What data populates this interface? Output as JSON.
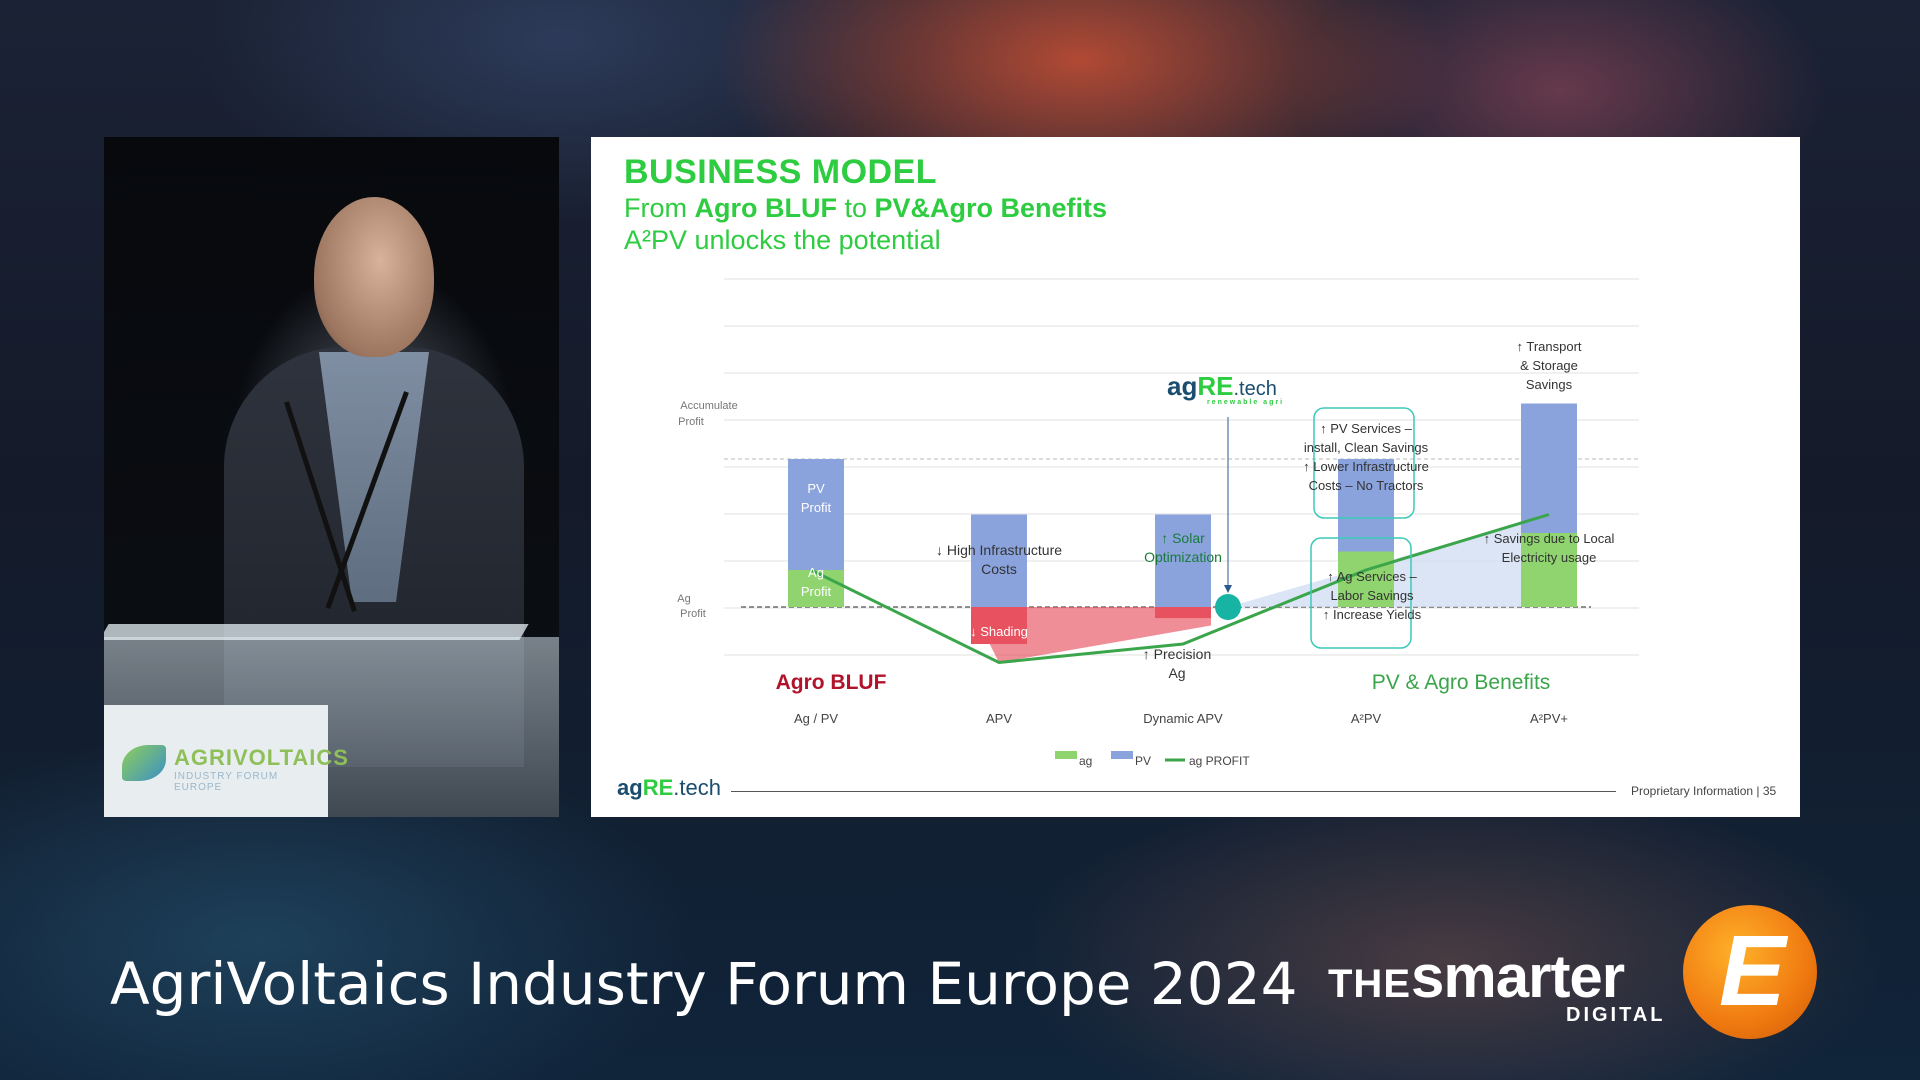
{
  "slide": {
    "title": "BUSINESS MODEL",
    "subtitle_prefix": "From ",
    "subtitle_bold1": "Agro BLUF",
    "subtitle_mid": " to ",
    "subtitle_bold2": "PV&Agro Benefits",
    "subtitle2": "A²PV unlocks the potential",
    "center_logo": {
      "ag": "ag",
      "re": "RE",
      "tech": ".tech",
      "tagline": "renewable agri"
    },
    "footer_logo": {
      "ag": "ag",
      "re": "RE",
      "tech": ".tech"
    },
    "footer_text": "Proprietary Information  |  35"
  },
  "chart_data": {
    "type": "bar",
    "categories": [
      "Ag / PV",
      "APV",
      "Dynamic APV",
      "A²PV",
      "A²PV+"
    ],
    "y_labels": [
      "Accumulate Profit",
      "Ag Profit"
    ],
    "series": [
      {
        "name": "ag",
        "color": "#8fd46e",
        "values": [
          1,
          -1,
          -0.3,
          1.5,
          2
        ]
      },
      {
        "name": "PV",
        "color": "#8aa3dd",
        "values": [
          3,
          2.5,
          2.5,
          2.5,
          3.5
        ]
      },
      {
        "name": "ag PROFIT",
        "color": "#3aa54a",
        "values": [
          1,
          -1.5,
          -1,
          1,
          2.5
        ]
      }
    ],
    "legend": [
      "ag",
      "PV",
      "ag PROFIT"
    ],
    "legend_position": "bottom",
    "section_labels": {
      "left": "Agro BLUF",
      "right": "PV & Agro Benefits"
    },
    "bar_labels": [
      {
        "key": "pv_profit",
        "text": "PV Profit"
      },
      {
        "key": "ag_profit",
        "text": "Ag Profit"
      },
      {
        "key": "high_infra",
        "text": "↓ High Infrastructure Costs"
      },
      {
        "key": "shading",
        "text": "↓ Shading"
      },
      {
        "key": "solar_opt",
        "text": "↑ Solar Optimization"
      },
      {
        "key": "precision_ag",
        "text": "↑ Precision Ag"
      },
      {
        "key": "pv_services",
        "text": "↑ PV Services – install, Clean Savings ↑ Lower Infrastructure Costs – No Tractors"
      },
      {
        "key": "ag_services",
        "text": "↑ Ag Services – Labor Savings ↑ Increase Yields"
      },
      {
        "key": "transport",
        "text": "↑ Transport & Storage Savings"
      },
      {
        "key": "local_elec",
        "text": "↑ Savings due to Local Electricity usage"
      }
    ],
    "colors": {
      "negative": "#e8515f",
      "profit_line": "#3aa54a",
      "marker": "#17b3a3"
    }
  },
  "event": {
    "title": "AgriVoltaics Industry Forum Europe 2024",
    "brand_the": "THE",
    "brand_smarter": "smarter",
    "brand_digital": "DIGITAL",
    "brand_mark": "E",
    "lectern_sign_line1": "AGRIVOLTAICS",
    "lectern_sign_line2": "INDUSTRY FORUM EUROPE"
  }
}
